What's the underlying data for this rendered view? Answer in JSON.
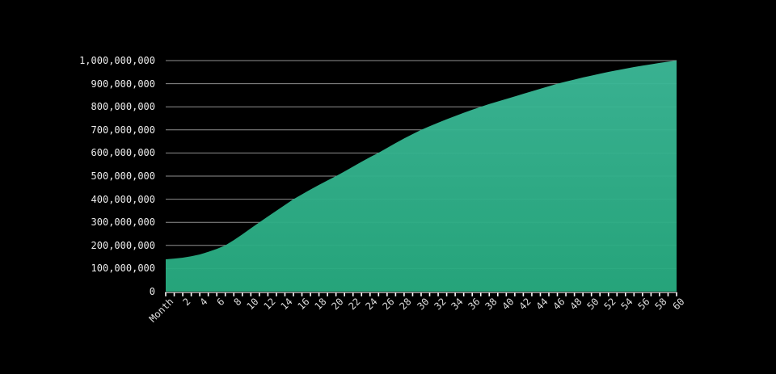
{
  "page": {
    "background_color": "#000000",
    "title": ""
  },
  "chart_data": {
    "type": "area",
    "title": "",
    "xlabel": "Month",
    "ylabel": "",
    "legend_position": "none",
    "grid": true,
    "xlim": [
      0,
      60
    ],
    "ylim": [
      0,
      1000000000
    ],
    "x_minor_tick_step": 1,
    "x_label_step": 2,
    "x": [
      0,
      1,
      2,
      3,
      4,
      5,
      6,
      7,
      8,
      9,
      10,
      11,
      12,
      13,
      14,
      15,
      16,
      17,
      18,
      19,
      20,
      21,
      22,
      23,
      24,
      25,
      26,
      27,
      28,
      29,
      30,
      31,
      32,
      33,
      34,
      35,
      36,
      37,
      38,
      39,
      40,
      41,
      42,
      43,
      44,
      45,
      46,
      47,
      48,
      49,
      50,
      51,
      52,
      53,
      54,
      55,
      56,
      57,
      58,
      59,
      60
    ],
    "values": [
      140000000,
      143000000,
      147000000,
      153000000,
      161000000,
      172000000,
      185000000,
      200000000,
      223000000,
      248000000,
      274000000,
      300000000,
      325000000,
      350000000,
      375000000,
      400000000,
      421000000,
      442000000,
      462000000,
      481000000,
      500000000,
      520000000,
      541000000,
      562000000,
      582000000,
      601000000,
      622000000,
      643000000,
      663000000,
      682000000,
      700000000,
      716000000,
      731000000,
      746000000,
      760000000,
      774000000,
      787000000,
      800000000,
      812000000,
      823000000,
      834000000,
      845000000,
      856000000,
      867000000,
      878000000,
      889000000,
      900000000,
      909000000,
      918000000,
      927000000,
      935000000,
      943000000,
      951000000,
      958000000,
      965000000,
      972000000,
      978000000,
      984000000,
      990000000,
      995000000,
      1000000000
    ],
    "y_ticks": [
      {
        "value": 1000000000,
        "label": "1,000,000,000"
      },
      {
        "value": 900000000,
        "label": "900,000,000"
      },
      {
        "value": 800000000,
        "label": "800,000,000"
      },
      {
        "value": 700000000,
        "label": "700,000,000"
      },
      {
        "value": 600000000,
        "label": "600,000,000"
      },
      {
        "value": 500000000,
        "label": "500,000,000"
      },
      {
        "value": 400000000,
        "label": "400,000,000"
      },
      {
        "value": 300000000,
        "label": "300,000,000"
      },
      {
        "value": 200000000,
        "label": "200,000,000"
      },
      {
        "value": 100000000,
        "label": "100,000,000"
      },
      {
        "value": 0,
        "label": "0"
      }
    ],
    "x_ticks": [
      {
        "pos": 0,
        "label": "Month"
      },
      {
        "pos": 2,
        "label": "2"
      },
      {
        "pos": 4,
        "label": "4"
      },
      {
        "pos": 6,
        "label": "6"
      },
      {
        "pos": 8,
        "label": "8"
      },
      {
        "pos": 10,
        "label": "10"
      },
      {
        "pos": 12,
        "label": "12"
      },
      {
        "pos": 14,
        "label": "14"
      },
      {
        "pos": 16,
        "label": "16"
      },
      {
        "pos": 18,
        "label": "18"
      },
      {
        "pos": 20,
        "label": "20"
      },
      {
        "pos": 22,
        "label": "22"
      },
      {
        "pos": 24,
        "label": "24"
      },
      {
        "pos": 26,
        "label": "26"
      },
      {
        "pos": 28,
        "label": "28"
      },
      {
        "pos": 30,
        "label": "30"
      },
      {
        "pos": 32,
        "label": "32"
      },
      {
        "pos": 34,
        "label": "34"
      },
      {
        "pos": 36,
        "label": "36"
      },
      {
        "pos": 38,
        "label": "38"
      },
      {
        "pos": 40,
        "label": "40"
      },
      {
        "pos": 42,
        "label": "42"
      },
      {
        "pos": 44,
        "label": "44"
      },
      {
        "pos": 46,
        "label": "46"
      },
      {
        "pos": 48,
        "label": "48"
      },
      {
        "pos": 50,
        "label": "50"
      },
      {
        "pos": 52,
        "label": "52"
      },
      {
        "pos": 54,
        "label": "54"
      },
      {
        "pos": 56,
        "label": "56"
      },
      {
        "pos": 58,
        "label": "58"
      },
      {
        "pos": 60,
        "label": "60"
      }
    ],
    "colors": {
      "background": "#000000",
      "area_fill_top": "#3cb897",
      "area_fill_bottom": "#27aa7f",
      "gridline": "#8f8f8f",
      "axis_line": "#f2f2f2",
      "tick_mark": "#ffffff",
      "y_label_text": "#ececec",
      "x_label_text": "#dcdcdc"
    }
  }
}
